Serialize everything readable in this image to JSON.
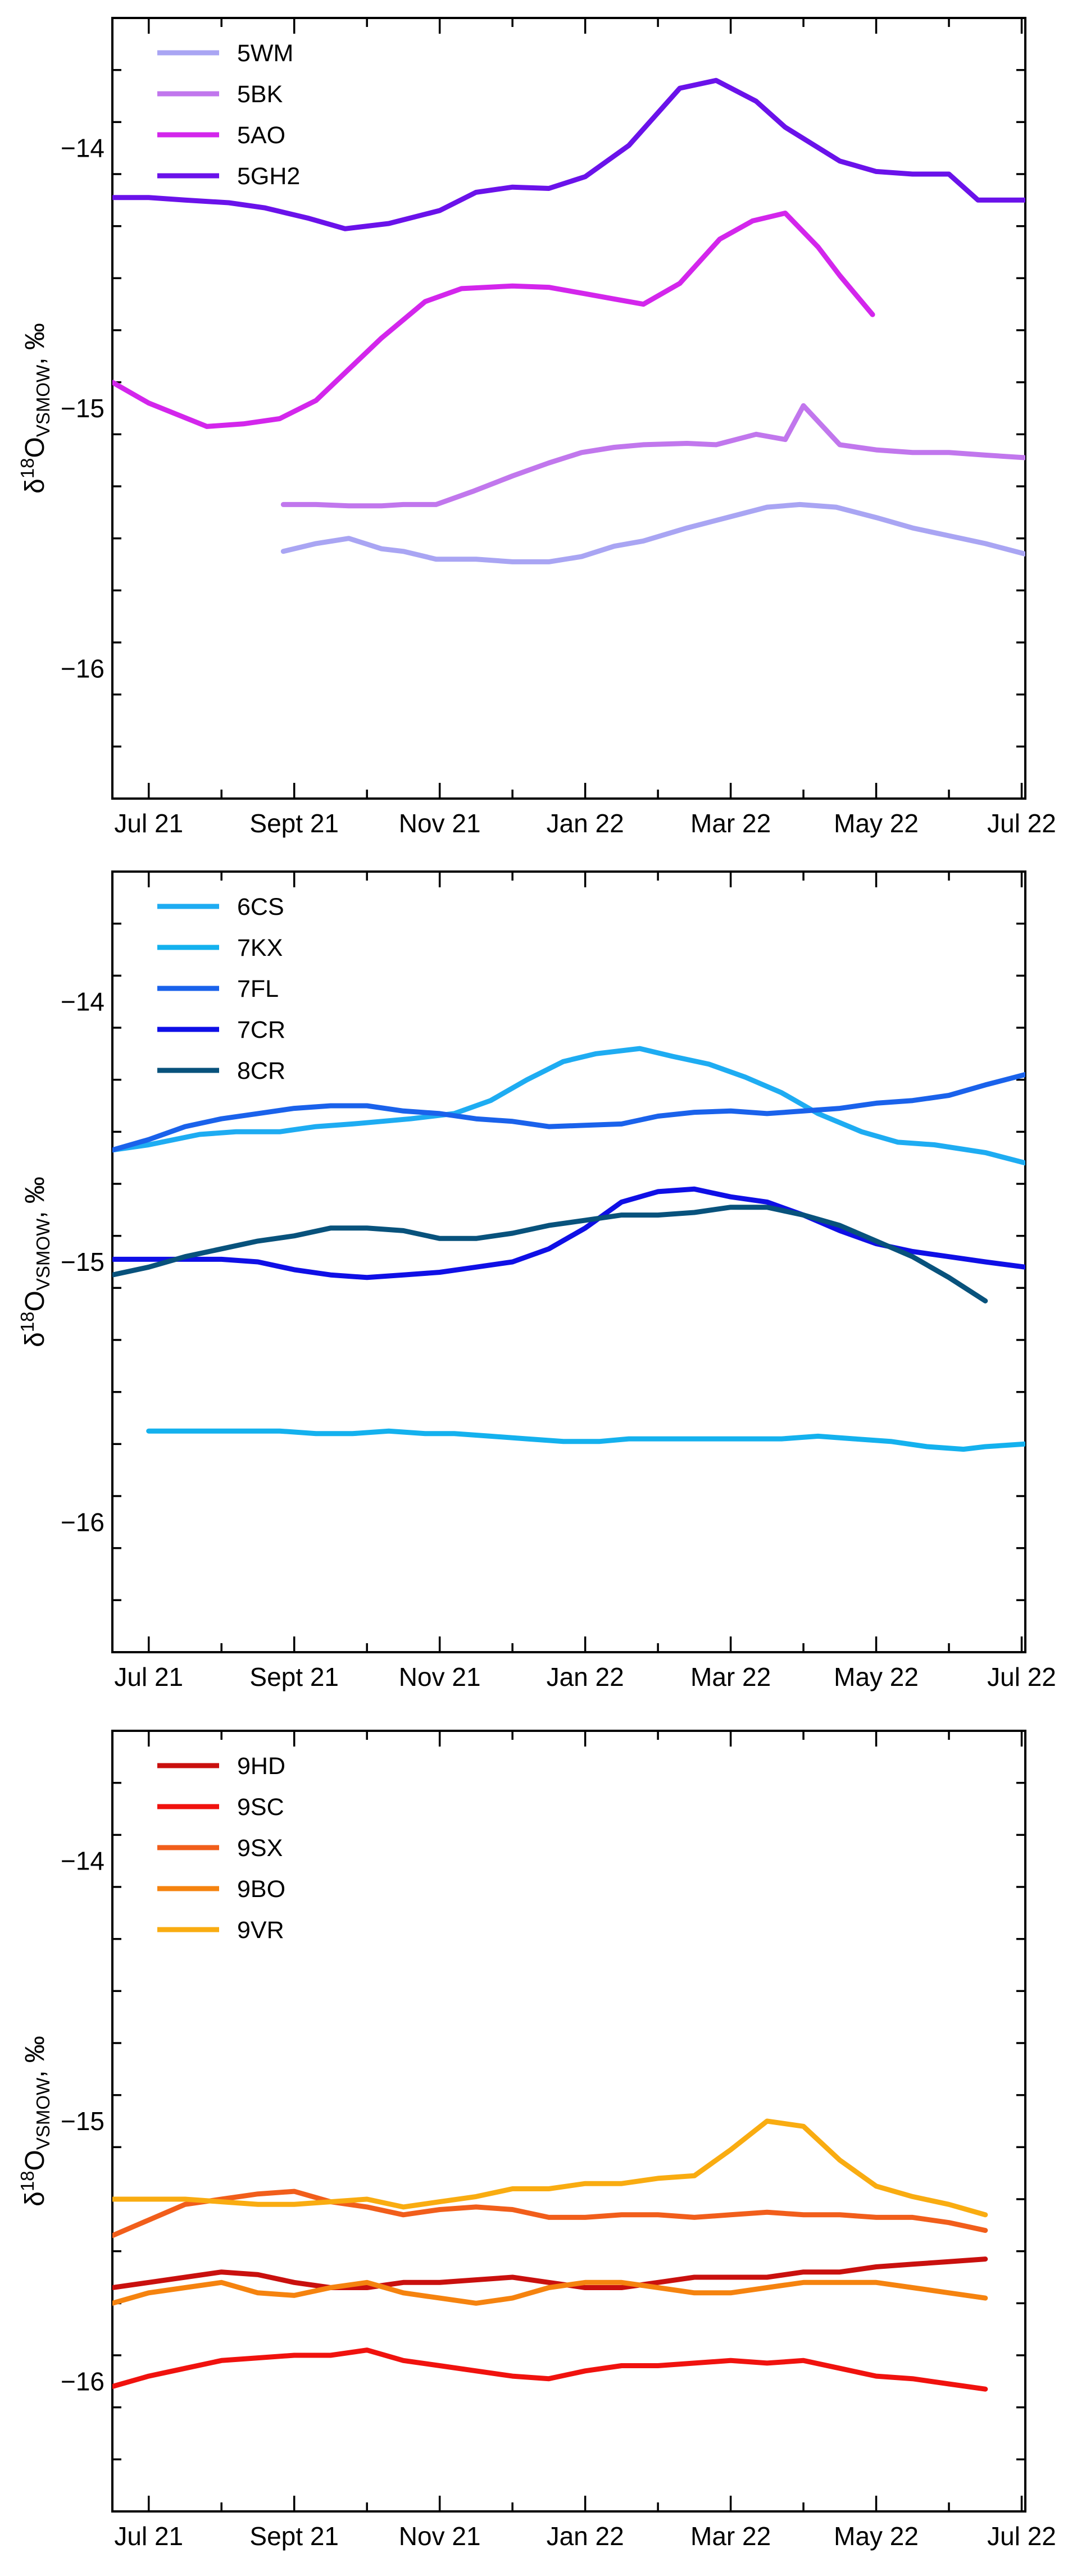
{
  "y_label": {
    "delta": "δ",
    "mass": "18",
    "element": "O",
    "subscript": "VSMOW",
    "unit": ", ‰"
  },
  "chart_data": [
    {
      "type": "line",
      "title": "",
      "xlabel": "",
      "ylabel": "δ18O VSMOW, ‰",
      "x_ticks": [
        1,
        3,
        5,
        7,
        9,
        11,
        13
      ],
      "x_tick_labels": [
        "Jul 21",
        "Sept 21",
        "Nov 21",
        "Jan 22",
        "Mar 22",
        "May 22",
        "Jul 22"
      ],
      "xlim": [
        0.5,
        13.05
      ],
      "ylim": [
        -16.5,
        -13.5
      ],
      "y_ticks": [
        -14,
        -15,
        -16
      ],
      "y_tick_labels": [
        "−14",
        "−15",
        "−16"
      ],
      "legend_position": "top-left",
      "series": [
        {
          "name": "5WM",
          "color": "#a9a5f3",
          "x": [
            2.85,
            3.3,
            3.75,
            4.2,
            4.5,
            4.95,
            5.5,
            6.0,
            6.5,
            6.95,
            7.4,
            7.8,
            8.4,
            8.95,
            9.5,
            9.95,
            10.45,
            11.0,
            11.5,
            12.0,
            12.5,
            13.05
          ],
          "y": [
            -15.55,
            -15.52,
            -15.5,
            -15.54,
            -15.55,
            -15.58,
            -15.58,
            -15.59,
            -15.59,
            -15.57,
            -15.53,
            -15.51,
            -15.46,
            -15.42,
            -15.38,
            -15.37,
            -15.38,
            -15.42,
            -15.46,
            -15.49,
            -15.52,
            -15.56
          ]
        },
        {
          "name": "5BK",
          "color": "#c177ed",
          "x": [
            2.85,
            3.3,
            3.75,
            4.2,
            4.5,
            4.95,
            5.45,
            6.0,
            6.5,
            6.95,
            7.4,
            7.8,
            8.4,
            8.8,
            9.35,
            9.75,
            10.0,
            10.5,
            11.0,
            11.5,
            12.0,
            12.5,
            13.05
          ],
          "y": [
            -15.37,
            -15.37,
            -15.375,
            -15.375,
            -15.37,
            -15.37,
            -15.32,
            -15.26,
            -15.21,
            -15.17,
            -15.15,
            -15.14,
            -15.135,
            -15.14,
            -15.1,
            -15.12,
            -14.99,
            -15.14,
            -15.16,
            -15.17,
            -15.17,
            -15.18,
            -15.19
          ]
        },
        {
          "name": "5AO",
          "color": "#d326ec",
          "x": [
            0.5,
            1.0,
            1.8,
            2.3,
            2.8,
            3.3,
            4.2,
            4.8,
            5.3,
            6.0,
            6.5,
            7.0,
            7.4,
            7.8,
            8.3,
            8.85,
            9.3,
            9.75,
            10.2,
            10.5,
            10.95
          ],
          "y": [
            -14.9,
            -14.98,
            -15.07,
            -15.06,
            -15.04,
            -14.97,
            -14.73,
            -14.59,
            -14.54,
            -14.53,
            -14.535,
            -14.56,
            -14.58,
            -14.6,
            -14.52,
            -14.35,
            -14.28,
            -14.25,
            -14.38,
            -14.49,
            -14.64
          ]
        },
        {
          "name": "5GH2",
          "color": "#6a12ea",
          "x": [
            0.5,
            1.0,
            1.5,
            2.1,
            2.6,
            3.2,
            3.7,
            4.3,
            5.0,
            5.5,
            6.0,
            6.5,
            7.0,
            7.6,
            8.3,
            8.8,
            9.35,
            9.75,
            10.5,
            11.0,
            11.5,
            12.0,
            12.4,
            13.05
          ],
          "y": [
            -14.19,
            -14.19,
            -14.2,
            -14.21,
            -14.23,
            -14.27,
            -14.31,
            -14.29,
            -14.24,
            -14.17,
            -14.15,
            -14.155,
            -14.11,
            -13.99,
            -13.77,
            -13.74,
            -13.82,
            -13.92,
            -14.05,
            -14.09,
            -14.1,
            -14.1,
            -14.2,
            -14.2
          ]
        }
      ]
    },
    {
      "type": "line",
      "title": "",
      "xlabel": "",
      "ylabel": "δ18O VSMOW, ‰",
      "x_ticks": [
        1,
        3,
        5,
        7,
        9,
        11,
        13
      ],
      "x_tick_labels": [
        "Jul 21",
        "Sept 21",
        "Nov 21",
        "Jan 22",
        "Mar 22",
        "May 22",
        "Jul 22"
      ],
      "xlim": [
        0.5,
        13.05
      ],
      "ylim": [
        -16.5,
        -13.5
      ],
      "y_ticks": [
        -14,
        -15,
        -16
      ],
      "y_tick_labels": [
        "−14",
        "−15",
        "−16"
      ],
      "legend_position": "top-left",
      "series": [
        {
          "name": "6CS",
          "color": "#1eacf2",
          "x": [
            0.5,
            1.0,
            1.7,
            2.2,
            2.8,
            3.3,
            3.8,
            4.2,
            4.6,
            5.2,
            5.7,
            6.2,
            6.7,
            7.15,
            7.75,
            8.2,
            8.7,
            9.2,
            9.7,
            10.2,
            10.8,
            11.3,
            11.8,
            12.5,
            13.05
          ],
          "y": [
            -14.57,
            -14.55,
            -14.51,
            -14.5,
            -14.5,
            -14.48,
            -14.47,
            -14.46,
            -14.45,
            -14.43,
            -14.38,
            -14.3,
            -14.23,
            -14.2,
            -14.18,
            -14.21,
            -14.24,
            -14.29,
            -14.35,
            -14.43,
            -14.5,
            -14.54,
            -14.55,
            -14.58,
            -14.62
          ]
        },
        {
          "name": "7KX",
          "color": "#14b1ee",
          "x": [
            1.0,
            1.7,
            2.2,
            2.8,
            3.3,
            3.8,
            4.3,
            4.8,
            5.2,
            5.7,
            6.2,
            6.7,
            7.2,
            7.6,
            8.2,
            8.7,
            9.2,
            9.7,
            10.2,
            10.7,
            11.2,
            11.7,
            12.2,
            12.5,
            13.05
          ],
          "y": [
            -15.65,
            -15.65,
            -15.65,
            -15.65,
            -15.66,
            -15.66,
            -15.65,
            -15.66,
            -15.66,
            -15.67,
            -15.68,
            -15.69,
            -15.69,
            -15.68,
            -15.68,
            -15.68,
            -15.68,
            -15.68,
            -15.67,
            -15.68,
            -15.69,
            -15.71,
            -15.72,
            -15.71,
            -15.7
          ]
        },
        {
          "name": "7FL",
          "color": "#1a62eb",
          "x": [
            0.5,
            1.0,
            1.5,
            2.0,
            2.5,
            3.0,
            3.5,
            4.0,
            4.5,
            5.0,
            5.5,
            6.0,
            6.5,
            7.0,
            7.5,
            8.0,
            8.5,
            9.0,
            9.5,
            10.0,
            10.5,
            11.0,
            11.5,
            12.0,
            12.5,
            13.05
          ],
          "y": [
            -14.57,
            -14.53,
            -14.48,
            -14.45,
            -14.43,
            -14.41,
            -14.4,
            -14.4,
            -14.42,
            -14.43,
            -14.45,
            -14.46,
            -14.48,
            -14.475,
            -14.47,
            -14.44,
            -14.425,
            -14.42,
            -14.43,
            -14.42,
            -14.41,
            -14.39,
            -14.38,
            -14.36,
            -14.32,
            -14.28
          ]
        },
        {
          "name": "7CR",
          "color": "#0f0fe6",
          "x": [
            0.5,
            1.0,
            1.5,
            2.0,
            2.5,
            3.0,
            3.5,
            4.0,
            4.5,
            5.0,
            5.5,
            6.0,
            6.5,
            7.0,
            7.5,
            8.0,
            8.5,
            9.0,
            9.5,
            10.0,
            10.5,
            11.0,
            11.5,
            12.0,
            12.5,
            13.05
          ],
          "y": [
            -14.99,
            -14.99,
            -14.99,
            -14.99,
            -15.0,
            -15.03,
            -15.05,
            -15.06,
            -15.05,
            -15.04,
            -15.02,
            -15.0,
            -14.95,
            -14.87,
            -14.77,
            -14.73,
            -14.72,
            -14.75,
            -14.77,
            -14.82,
            -14.88,
            -14.93,
            -14.96,
            -14.98,
            -15.0,
            -15.02
          ]
        },
        {
          "name": "8CR",
          "color": "#08527c",
          "x": [
            0.5,
            1.0,
            1.5,
            2.0,
            2.5,
            3.0,
            3.5,
            4.0,
            4.5,
            5.0,
            5.5,
            6.0,
            6.5,
            7.0,
            7.5,
            8.0,
            8.5,
            9.0,
            9.5,
            10.0,
            10.5,
            11.0,
            11.5,
            12.0,
            12.5
          ],
          "y": [
            -15.05,
            -15.02,
            -14.98,
            -14.95,
            -14.92,
            -14.9,
            -14.87,
            -14.87,
            -14.88,
            -14.91,
            -14.91,
            -14.89,
            -14.86,
            -14.84,
            -14.82,
            -14.82,
            -14.81,
            -14.79,
            -14.79,
            -14.82,
            -14.86,
            -14.92,
            -14.98,
            -15.06,
            -15.15
          ]
        }
      ]
    },
    {
      "type": "line",
      "title": "",
      "xlabel": "",
      "ylabel": "δ18O VSMOW, ‰",
      "x_ticks": [
        1,
        3,
        5,
        7,
        9,
        11,
        13
      ],
      "x_tick_labels": [
        "Jul 21",
        "Sept 21",
        "Nov 21",
        "Jan 22",
        "Mar 22",
        "May 22",
        "Jul 22"
      ],
      "xlim": [
        0.5,
        13.05
      ],
      "ylim": [
        -16.5,
        -13.5
      ],
      "y_ticks": [
        -14,
        -15,
        -16
      ],
      "y_tick_labels": [
        "−14",
        "−15",
        "−16"
      ],
      "legend_position": "top-left",
      "series": [
        {
          "name": "9HD",
          "color": "#c9100e",
          "x": [
            0.5,
            1.0,
            1.5,
            2.0,
            2.5,
            3.0,
            3.5,
            4.0,
            4.5,
            5.0,
            5.5,
            6.0,
            6.5,
            7.0,
            7.5,
            8.0,
            8.5,
            9.0,
            9.5,
            10.0,
            10.5,
            11.0,
            11.5,
            12.0,
            12.5
          ],
          "y": [
            -15.64,
            -15.62,
            -15.6,
            -15.58,
            -15.59,
            -15.62,
            -15.64,
            -15.64,
            -15.62,
            -15.62,
            -15.61,
            -15.6,
            -15.62,
            -15.64,
            -15.64,
            -15.62,
            -15.6,
            -15.6,
            -15.6,
            -15.58,
            -15.58,
            -15.56,
            -15.55,
            -15.54,
            -15.53
          ]
        },
        {
          "name": "9SC",
          "color": "#f0120e",
          "x": [
            0.5,
            1.0,
            1.5,
            2.0,
            2.5,
            3.0,
            3.5,
            4.0,
            4.5,
            5.0,
            5.5,
            6.0,
            6.5,
            7.0,
            7.5,
            8.0,
            8.5,
            9.0,
            9.5,
            10.0,
            10.5,
            11.0,
            11.5,
            12.0,
            12.5
          ],
          "y": [
            -16.02,
            -15.98,
            -15.95,
            -15.92,
            -15.91,
            -15.9,
            -15.9,
            -15.88,
            -15.92,
            -15.94,
            -15.96,
            -15.98,
            -15.99,
            -15.96,
            -15.94,
            -15.94,
            -15.93,
            -15.92,
            -15.93,
            -15.92,
            -15.95,
            -15.98,
            -15.99,
            -16.01,
            -16.03
          ]
        },
        {
          "name": "9SX",
          "color": "#f15e1b",
          "x": [
            0.5,
            1.0,
            1.5,
            2.0,
            2.5,
            3.0,
            3.5,
            4.0,
            4.5,
            5.0,
            5.5,
            6.0,
            6.5,
            7.0,
            7.5,
            8.0,
            8.5,
            9.0,
            9.5,
            10.0,
            10.5,
            11.0,
            11.5,
            12.0,
            12.5
          ],
          "y": [
            -15.44,
            -15.38,
            -15.32,
            -15.3,
            -15.28,
            -15.27,
            -15.31,
            -15.33,
            -15.36,
            -15.34,
            -15.33,
            -15.34,
            -15.37,
            -15.37,
            -15.36,
            -15.36,
            -15.37,
            -15.36,
            -15.35,
            -15.36,
            -15.36,
            -15.37,
            -15.37,
            -15.39,
            -15.42
          ]
        },
        {
          "name": "9BO",
          "color": "#f5830f",
          "x": [
            0.5,
            1.0,
            1.5,
            2.0,
            2.5,
            3.0,
            3.5,
            4.0,
            4.5,
            5.0,
            5.5,
            6.0,
            6.5,
            7.0,
            7.5,
            8.0,
            8.5,
            9.0,
            9.5,
            10.0,
            10.5,
            11.0,
            11.5,
            12.0,
            12.5
          ],
          "y": [
            -15.7,
            -15.66,
            -15.64,
            -15.62,
            -15.66,
            -15.67,
            -15.64,
            -15.62,
            -15.66,
            -15.68,
            -15.7,
            -15.68,
            -15.64,
            -15.62,
            -15.62,
            -15.64,
            -15.66,
            -15.66,
            -15.64,
            -15.62,
            -15.62,
            -15.62,
            -15.64,
            -15.66,
            -15.68
          ]
        },
        {
          "name": "9VR",
          "color": "#f9ac11",
          "x": [
            0.5,
            1.0,
            1.5,
            2.0,
            2.5,
            3.0,
            3.5,
            4.0,
            4.5,
            5.0,
            5.5,
            6.0,
            6.5,
            7.0,
            7.5,
            8.0,
            8.5,
            9.0,
            9.5,
            10.0,
            10.5,
            11.0,
            11.5,
            12.0,
            12.5
          ],
          "y": [
            -15.3,
            -15.3,
            -15.3,
            -15.31,
            -15.32,
            -15.32,
            -15.31,
            -15.3,
            -15.33,
            -15.31,
            -15.29,
            -15.26,
            -15.26,
            -15.24,
            -15.24,
            -15.22,
            -15.21,
            -15.11,
            -15.0,
            -15.02,
            -15.15,
            -15.25,
            -15.29,
            -15.32,
            -15.36
          ]
        }
      ]
    }
  ]
}
